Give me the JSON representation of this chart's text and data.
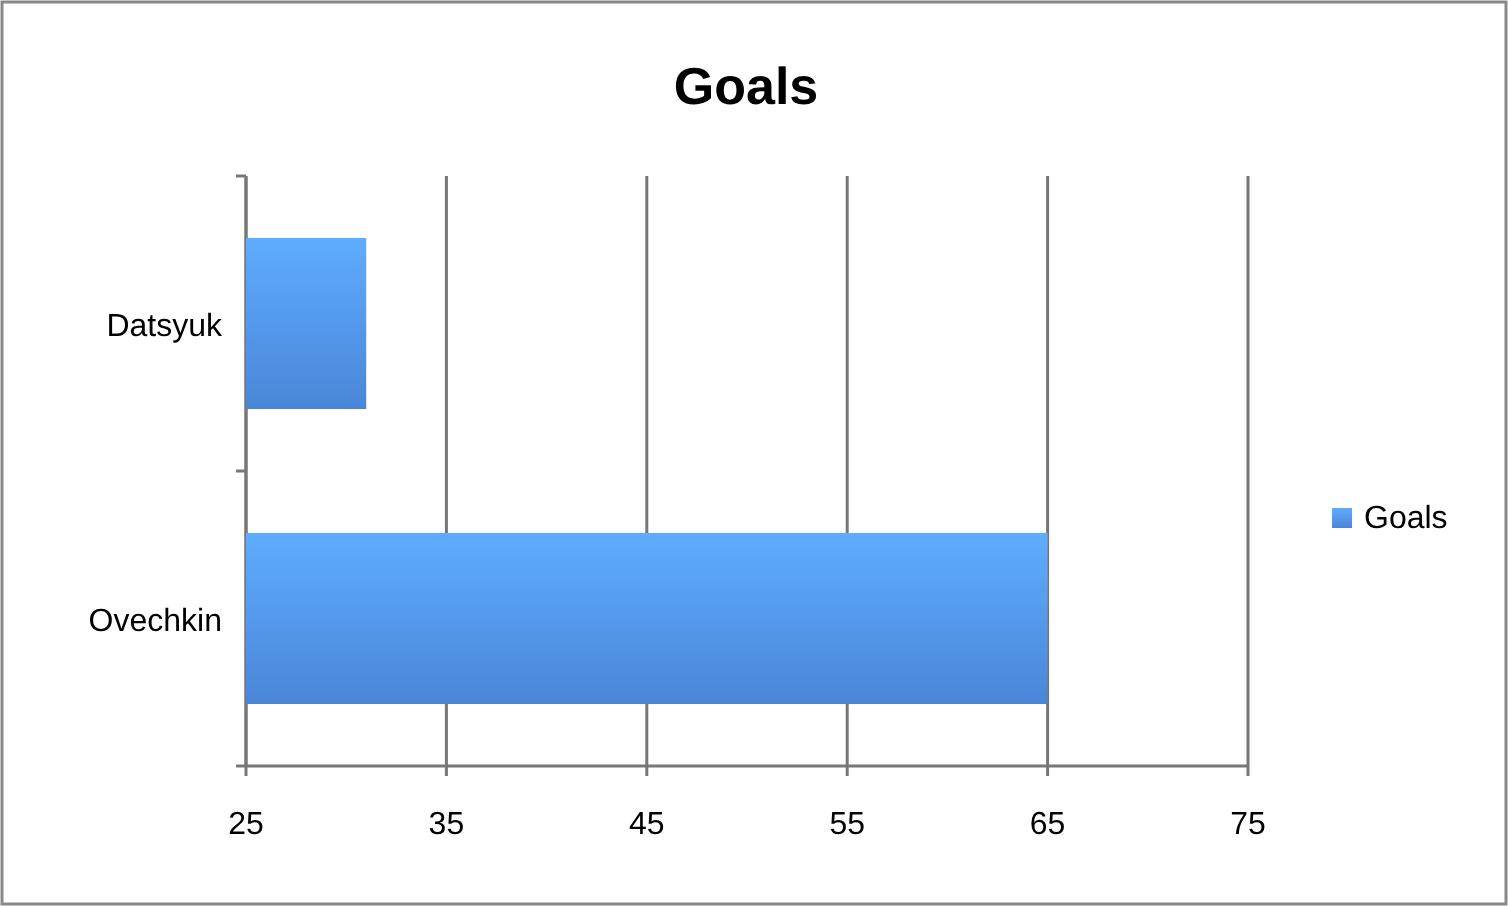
{
  "chart_data": {
    "type": "bar",
    "title": "Goals",
    "orientation": "horizontal",
    "categories": [
      "Datsyuk",
      "Ovechkin"
    ],
    "series": [
      {
        "name": "Goals",
        "color": "#4a86d8",
        "values": [
          31,
          65
        ]
      }
    ],
    "xlim": [
      25,
      75
    ],
    "xticks": [
      25,
      35,
      45,
      55,
      65,
      75
    ],
    "grid": "x",
    "legend": "right"
  }
}
